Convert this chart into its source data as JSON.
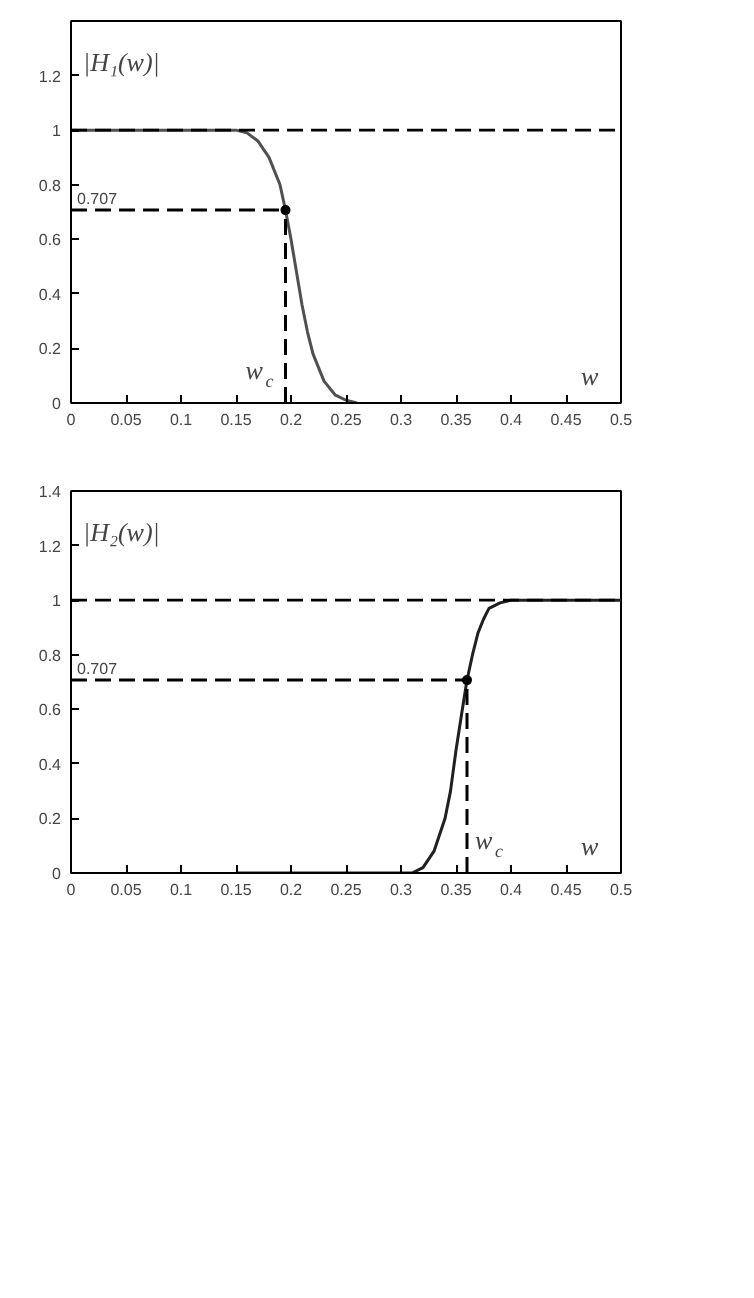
{
  "chart_data": [
    {
      "type": "line",
      "xlim": [
        0,
        0.5
      ],
      "ylim": [
        0,
        1.4
      ],
      "xticks": [
        0,
        0.05,
        0.1,
        0.15,
        0.2,
        0.25,
        0.3,
        0.35,
        0.4,
        0.45,
        0.5
      ],
      "yticks": [
        0,
        0.2,
        0.4,
        0.6,
        0.8,
        1,
        1.2
      ],
      "series": [
        {
          "x": [
            0,
            0.15,
            0.16,
            0.17,
            0.18,
            0.19,
            0.195,
            0.2,
            0.205,
            0.21,
            0.215,
            0.22,
            0.23,
            0.24,
            0.25,
            0.26
          ],
          "values": [
            1,
            1,
            0.99,
            0.96,
            0.9,
            0.8,
            0.707,
            0.6,
            0.48,
            0.36,
            0.26,
            0.18,
            0.08,
            0.03,
            0.01,
            0
          ],
          "color": "#505050",
          "line_style": "solid"
        },
        {
          "x": [
            0,
            0.195
          ],
          "values": [
            0.707,
            0.707
          ],
          "color": "#000000",
          "line_style": "dashed"
        },
        {
          "x": [
            0.195,
            0.195
          ],
          "values": [
            0,
            0.707
          ],
          "color": "#000000",
          "line_style": "dashed"
        },
        {
          "type": "scatter",
          "x": [
            0.195
          ],
          "values": [
            0.707
          ],
          "color": "#000000",
          "marker": "circle"
        }
      ],
      "ref_lines": [
        {
          "axis": "y",
          "value": 1,
          "color": "#000000",
          "line_style": "dashed"
        }
      ],
      "annotations": [
        "|H₁(w)|",
        {
          "text": "0.707",
          "x": 0,
          "y": 0.707
        },
        {
          "text": "w$_{c}$",
          "x": 0.195,
          "y": 0
        },
        "w"
      ]
    },
    {
      "type": "line",
      "xlim": [
        0,
        0.5
      ],
      "ylim": [
        0,
        1.4
      ],
      "xticks": [
        0,
        0.05,
        0.1,
        0.15,
        0.2,
        0.25,
        0.3,
        0.35,
        0.4,
        0.45,
        0.5
      ],
      "yticks": [
        0,
        0.2,
        0.4,
        0.6,
        0.8,
        1,
        1.2,
        1.4
      ],
      "series": [
        {
          "x": [
            0.15,
            0.31,
            0.32,
            0.33,
            0.34,
            0.345,
            0.35,
            0.355,
            0.36,
            0.365,
            0.37,
            0.375,
            0.38,
            0.39,
            0.4,
            0.5
          ],
          "values": [
            0,
            0,
            0.02,
            0.08,
            0.2,
            0.3,
            0.45,
            0.58,
            0.707,
            0.8,
            0.88,
            0.93,
            0.97,
            0.99,
            1,
            1
          ],
          "color": "#202020",
          "line_style": "solid"
        },
        {
          "x": [
            0,
            0.36
          ],
          "values": [
            0.707,
            0.707
          ],
          "color": "#000000",
          "line_style": "dashed"
        },
        {
          "x": [
            0.36,
            0.36
          ],
          "values": [
            0,
            0.707
          ],
          "color": "#000000",
          "line_style": "dashed"
        },
        {
          "type": "scatter",
          "x": [
            0.36
          ],
          "values": [
            0.707
          ],
          "color": "#000000",
          "marker": "circle"
        }
      ],
      "ref_lines": [
        {
          "axis": "y",
          "value": 1,
          "color": "#000000",
          "line_style": "dashed"
        }
      ],
      "annotations": [
        "|H₂(w)|",
        {
          "text": "0.707",
          "x": 0,
          "y": 0.707
        },
        {
          "text": "w$_{c}$",
          "x": 0.36,
          "y": 0
        },
        "w"
      ]
    }
  ]
}
